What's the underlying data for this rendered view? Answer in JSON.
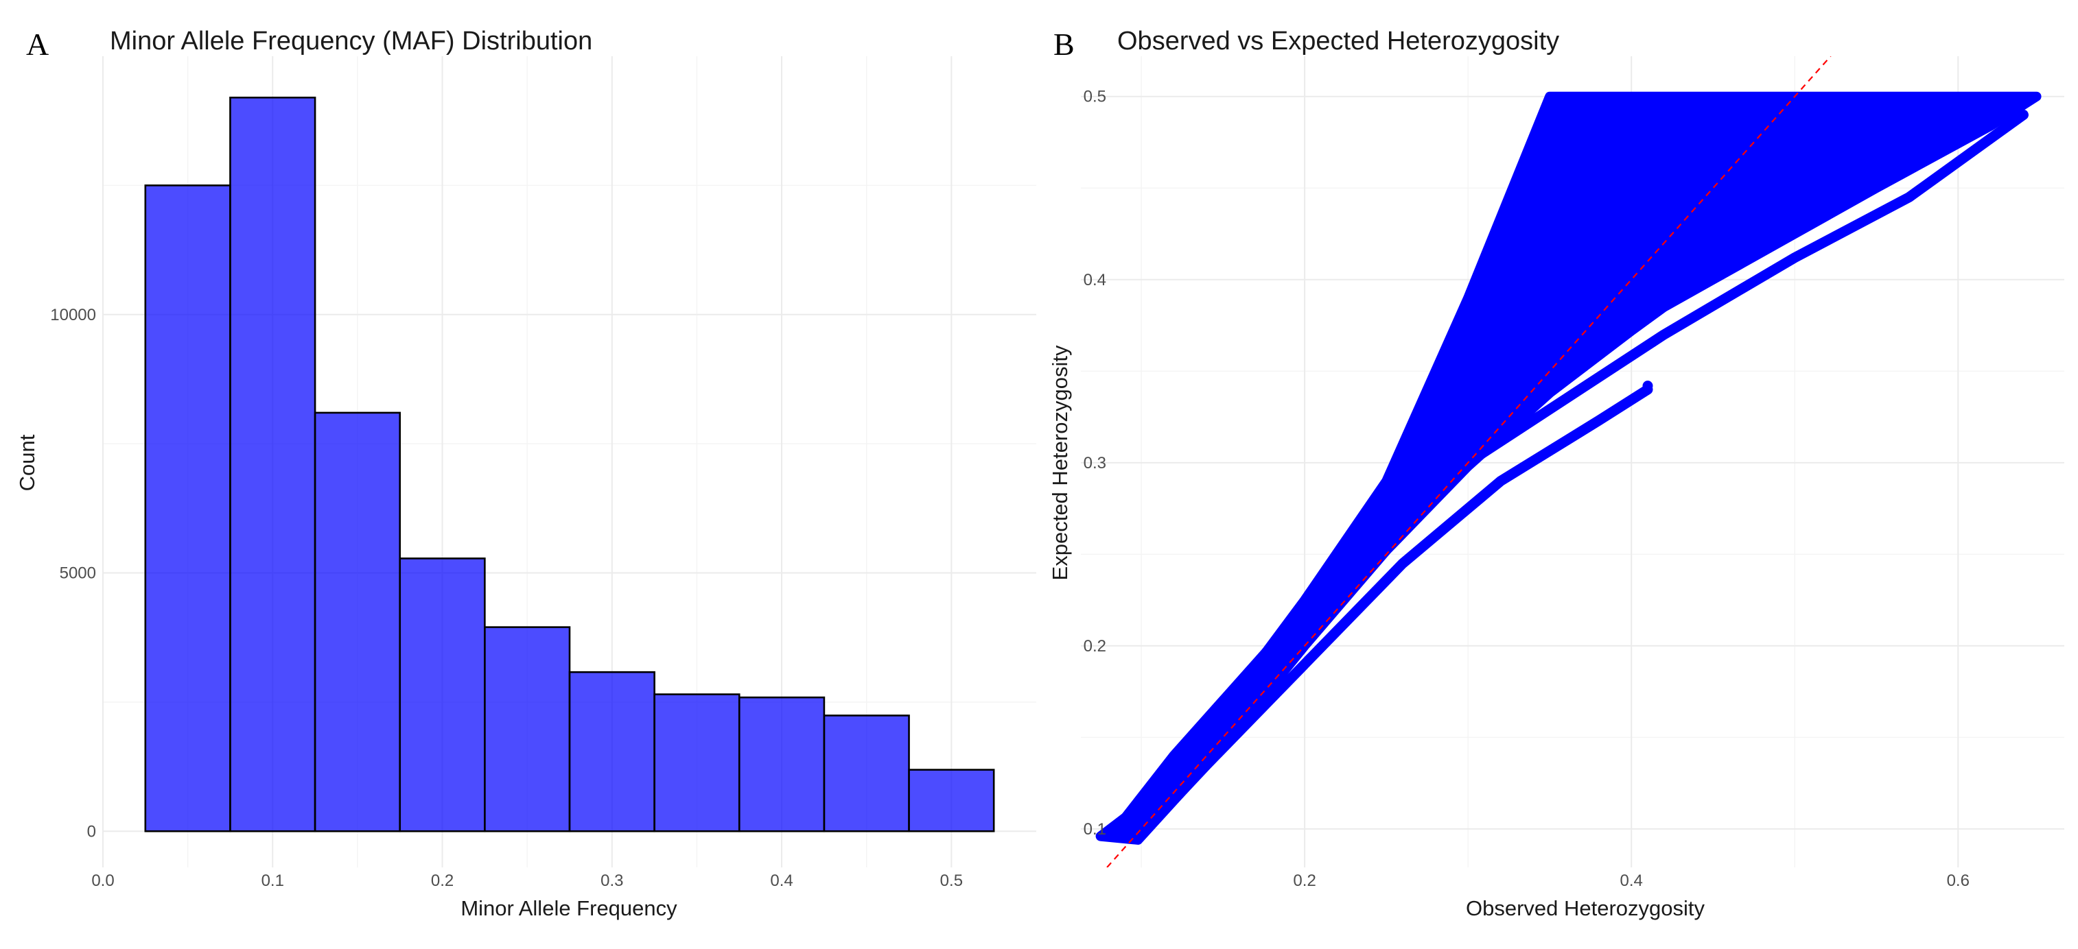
{
  "panels": {
    "a": {
      "label": "A"
    },
    "b": {
      "label": "B"
    }
  },
  "colors": {
    "fill": "#0000ff",
    "bar_fill_opacity": 0.7,
    "bar_edge": "#000000",
    "reference_line": "#ff0000"
  },
  "chart_data": [
    {
      "type": "bar",
      "title": "Minor Allele Frequency (MAF) Distribution",
      "xlabel": "Minor Allele Frequency",
      "ylabel": "Count",
      "bin_width": 0.05,
      "bin_centers": [
        0.05,
        0.1,
        0.15,
        0.2,
        0.25,
        0.3,
        0.35,
        0.4,
        0.45,
        0.5
      ],
      "values": [
        12500,
        14200,
        8100,
        5280,
        3950,
        3080,
        2650,
        2590,
        2240,
        1190
      ],
      "xlim": [
        -0.0,
        0.55
      ],
      "ylim": [
        -700,
        15000
      ],
      "x_ticks": [
        0.0,
        0.1,
        0.2,
        0.3,
        0.4,
        0.5
      ],
      "x_tick_labels": [
        "0.0",
        "0.1",
        "0.2",
        "0.3",
        "0.4",
        "0.5"
      ],
      "y_ticks": [
        0,
        5000,
        10000
      ],
      "y_tick_labels": [
        "0",
        "5000",
        "10000"
      ],
      "grid": true
    },
    {
      "type": "scatter",
      "title": "Observed vs Expected Heterozygosity",
      "xlabel": "Observed Heterozygosity",
      "ylabel": "Expected Heterozygosity",
      "xlim": [
        0.063,
        0.665
      ],
      "ylim": [
        0.079,
        0.522
      ],
      "x_ticks": [
        0.2,
        0.4,
        0.6
      ],
      "x_tick_labels": [
        "0.2",
        "0.4",
        "0.6"
      ],
      "y_ticks": [
        0.1,
        0.2,
        0.3,
        0.4,
        0.5
      ],
      "y_tick_labels": [
        "0.1",
        "0.2",
        "0.3",
        "0.4",
        "0.5"
      ],
      "grid": true,
      "point_cloud": {
        "polygon": [
          [
            0.075,
            0.096
          ],
          [
            0.1,
            0.113
          ],
          [
            0.15,
            0.165
          ],
          [
            0.2,
            0.225
          ],
          [
            0.25,
            0.29
          ],
          [
            0.3,
            0.39
          ],
          [
            0.35,
            0.5
          ],
          [
            0.648,
            0.5
          ],
          [
            0.62,
            0.484
          ],
          [
            0.55,
            0.45
          ],
          [
            0.5,
            0.425
          ],
          [
            0.45,
            0.4
          ],
          [
            0.42,
            0.385
          ],
          [
            0.4,
            0.372
          ],
          [
            0.35,
            0.338
          ],
          [
            0.3,
            0.298
          ],
          [
            0.25,
            0.252
          ],
          [
            0.2,
            0.2
          ],
          [
            0.15,
            0.145
          ],
          [
            0.098,
            0.094
          ]
        ],
        "lower_bands": [
          [
            [
              0.085,
              0.1
            ],
            [
              0.12,
              0.14
            ],
            [
              0.18,
              0.2
            ],
            [
              0.24,
              0.255
            ],
            [
              0.3,
              0.3
            ],
            [
              0.36,
              0.335
            ],
            [
              0.42,
              0.37
            ],
            [
              0.5,
              0.412
            ],
            [
              0.57,
              0.445
            ],
            [
              0.64,
              0.49
            ]
          ],
          [
            [
              0.098,
              0.095
            ],
            [
              0.14,
              0.135
            ],
            [
              0.2,
              0.19
            ],
            [
              0.26,
              0.245
            ],
            [
              0.32,
              0.29
            ],
            [
              0.38,
              0.323
            ],
            [
              0.41,
              0.34
            ]
          ]
        ],
        "isolated_points": [
          [
            0.323,
            0.335
          ],
          [
            0.33,
            0.339
          ],
          [
            0.336,
            0.342
          ],
          [
            0.41,
            0.342
          ],
          [
            0.56,
            0.46
          ],
          [
            0.585,
            0.47
          ]
        ]
      },
      "reference_line": {
        "type": "y = x",
        "style": "dashed",
        "from": 0.079,
        "to": 0.522
      }
    }
  ]
}
